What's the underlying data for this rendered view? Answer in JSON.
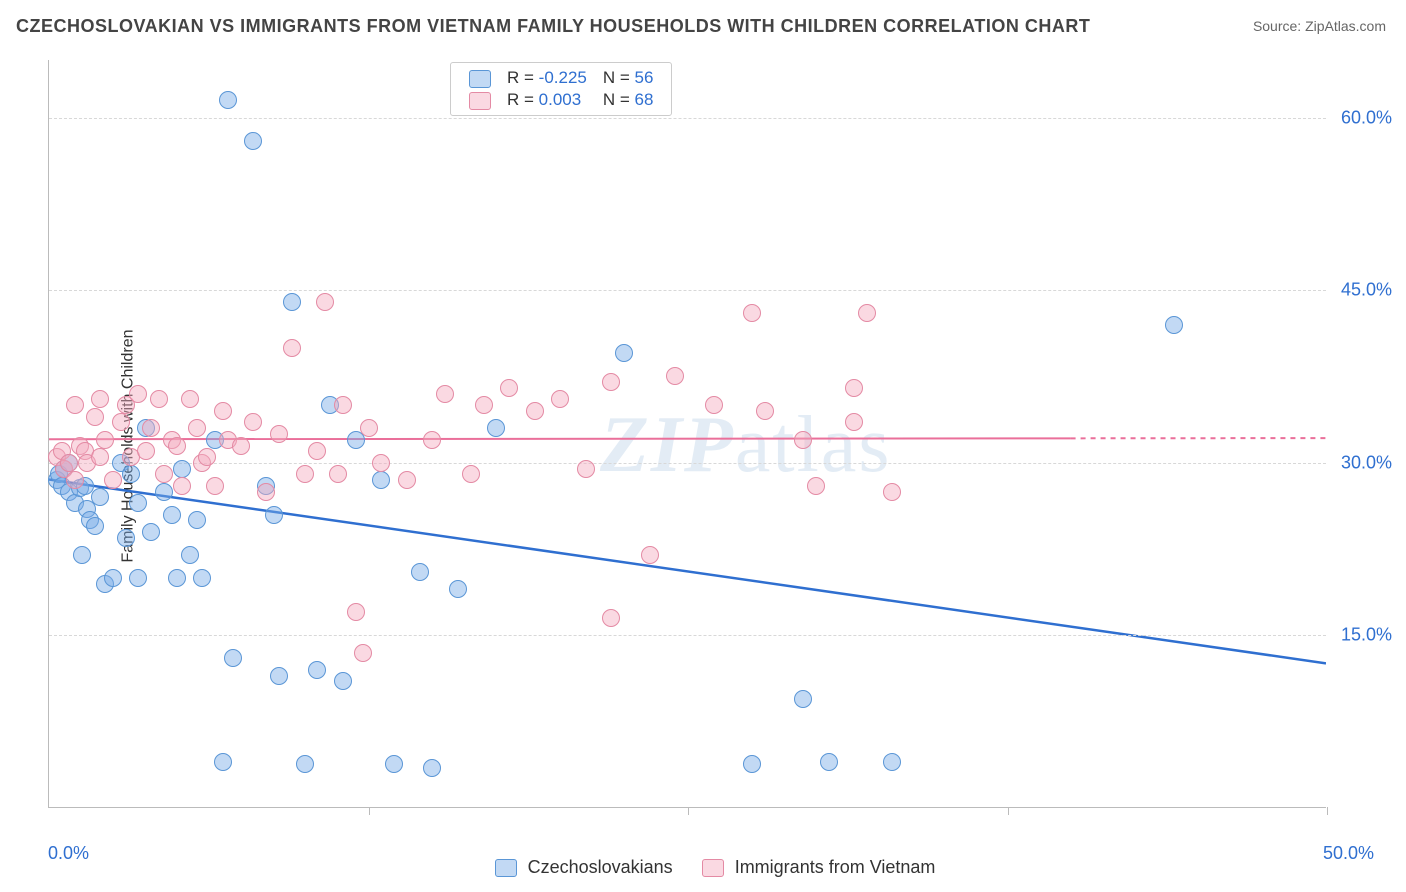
{
  "title": "CZECHOSLOVAKIAN VS IMMIGRANTS FROM VIETNAM FAMILY HOUSEHOLDS WITH CHILDREN CORRELATION CHART",
  "source": "Source: ZipAtlas.com",
  "ylabel": "Family Households with Children",
  "watermark_a": "ZIP",
  "watermark_b": "atlas",
  "chart": {
    "type": "scatter",
    "xlim": [
      0,
      50
    ],
    "ylim": [
      0,
      65
    ],
    "yticks": [
      15,
      30,
      45,
      60
    ],
    "ytick_labels": [
      "15.0%",
      "30.0%",
      "45.0%",
      "60.0%"
    ],
    "xtick_positions": [
      12.5,
      25,
      37.5,
      50
    ],
    "x_min_label": "0.0%",
    "x_max_label": "50.0%",
    "background_color": "#ffffff",
    "grid_color": "#d8d8d8",
    "marker_radius": 9,
    "marker_border": 1.5,
    "series": [
      {
        "name": "Czechoslovakians",
        "fill": "rgba(120,170,230,0.45)",
        "stroke": "#5a96d6",
        "R": "-0.225",
        "N": "56",
        "trend": {
          "y_at_x0": 28.5,
          "y_at_x50": 12.5,
          "color": "#2f6fd0",
          "width": 2.5
        },
        "points": [
          [
            0.3,
            28.5
          ],
          [
            0.4,
            29.0
          ],
          [
            0.5,
            28.0
          ],
          [
            0.6,
            29.5
          ],
          [
            0.8,
            27.5
          ],
          [
            0.8,
            30.0
          ],
          [
            1.0,
            26.5
          ],
          [
            1.2,
            27.8
          ],
          [
            1.3,
            22.0
          ],
          [
            1.4,
            28.0
          ],
          [
            1.5,
            26.0
          ],
          [
            1.6,
            25.0
          ],
          [
            1.8,
            24.5
          ],
          [
            2.0,
            27.0
          ],
          [
            2.2,
            19.5
          ],
          [
            2.5,
            20.0
          ],
          [
            2.8,
            30.0
          ],
          [
            3.0,
            23.5
          ],
          [
            3.2,
            29.0
          ],
          [
            3.5,
            26.5
          ],
          [
            3.5,
            20.0
          ],
          [
            3.8,
            33.0
          ],
          [
            4.0,
            24.0
          ],
          [
            4.5,
            27.5
          ],
          [
            4.8,
            25.5
          ],
          [
            5.0,
            20.0
          ],
          [
            5.2,
            29.5
          ],
          [
            5.5,
            22.0
          ],
          [
            5.8,
            25.0
          ],
          [
            6.0,
            20.0
          ],
          [
            6.5,
            32.0
          ],
          [
            6.8,
            4.0
          ],
          [
            7.0,
            61.5
          ],
          [
            7.2,
            13.0
          ],
          [
            8.0,
            58.0
          ],
          [
            8.5,
            28.0
          ],
          [
            8.8,
            25.5
          ],
          [
            9.0,
            11.5
          ],
          [
            9.5,
            44.0
          ],
          [
            10.0,
            3.8
          ],
          [
            10.5,
            12.0
          ],
          [
            11.0,
            35.0
          ],
          [
            11.5,
            11.0
          ],
          [
            12.0,
            32.0
          ],
          [
            13.0,
            28.5
          ],
          [
            13.5,
            3.8
          ],
          [
            14.5,
            20.5
          ],
          [
            15.0,
            3.5
          ],
          [
            16.0,
            19.0
          ],
          [
            17.5,
            33.0
          ],
          [
            22.5,
            39.5
          ],
          [
            27.5,
            3.8
          ],
          [
            29.5,
            9.5
          ],
          [
            30.5,
            4.0
          ],
          [
            33.0,
            4.0
          ],
          [
            44.0,
            42.0
          ]
        ]
      },
      {
        "name": "Immigrants from Vietnam",
        "fill": "rgba(245,170,190,0.45)",
        "stroke": "#e48aa4",
        "R": "0.003",
        "N": "68",
        "trend": {
          "y_at_x0": 32.0,
          "y_at_x50": 32.1,
          "color": "#ea6f9a",
          "width": 2,
          "dash_after": 40
        },
        "points": [
          [
            0.3,
            30.5
          ],
          [
            0.5,
            31.0
          ],
          [
            0.6,
            29.5
          ],
          [
            0.8,
            30.0
          ],
          [
            1.0,
            35.0
          ],
          [
            1.0,
            28.5
          ],
          [
            1.2,
            31.5
          ],
          [
            1.4,
            31.0
          ],
          [
            1.5,
            30.0
          ],
          [
            1.8,
            34.0
          ],
          [
            2.0,
            35.5
          ],
          [
            2.0,
            30.5
          ],
          [
            2.2,
            32.0
          ],
          [
            2.5,
            28.5
          ],
          [
            2.8,
            33.5
          ],
          [
            3.0,
            35.0
          ],
          [
            3.2,
            30.5
          ],
          [
            3.5,
            36.0
          ],
          [
            3.8,
            31.0
          ],
          [
            4.0,
            33.0
          ],
          [
            4.3,
            35.5
          ],
          [
            4.5,
            29.0
          ],
          [
            4.8,
            32.0
          ],
          [
            5.0,
            31.5
          ],
          [
            5.2,
            28.0
          ],
          [
            5.5,
            35.5
          ],
          [
            5.8,
            33.0
          ],
          [
            6.0,
            30.0
          ],
          [
            6.2,
            30.5
          ],
          [
            6.5,
            28.0
          ],
          [
            6.8,
            34.5
          ],
          [
            7.0,
            32.0
          ],
          [
            7.5,
            31.5
          ],
          [
            8.0,
            33.5
          ],
          [
            8.5,
            27.5
          ],
          [
            9.0,
            32.5
          ],
          [
            9.5,
            40.0
          ],
          [
            10.0,
            29.0
          ],
          [
            10.5,
            31.0
          ],
          [
            10.8,
            44.0
          ],
          [
            11.3,
            29.0
          ],
          [
            11.5,
            35.0
          ],
          [
            12.0,
            17.0
          ],
          [
            12.3,
            13.5
          ],
          [
            12.5,
            33.0
          ],
          [
            13.0,
            30.0
          ],
          [
            14.0,
            28.5
          ],
          [
            15.0,
            32.0
          ],
          [
            15.5,
            36.0
          ],
          [
            16.5,
            29.0
          ],
          [
            17.0,
            35.0
          ],
          [
            18.0,
            36.5
          ],
          [
            19.0,
            34.5
          ],
          [
            20.0,
            35.5
          ],
          [
            21.0,
            29.5
          ],
          [
            22.0,
            37.0
          ],
          [
            22.0,
            16.5
          ],
          [
            23.5,
            22.0
          ],
          [
            24.5,
            37.5
          ],
          [
            26.0,
            35.0
          ],
          [
            27.5,
            43.0
          ],
          [
            28.0,
            34.5
          ],
          [
            29.5,
            32.0
          ],
          [
            30.0,
            28.0
          ],
          [
            31.5,
            33.5
          ],
          [
            31.5,
            36.5
          ],
          [
            32.0,
            43.0
          ],
          [
            33.0,
            27.5
          ]
        ]
      }
    ]
  },
  "legend_bottom": {
    "items": [
      "Czechoslovakians",
      "Immigrants from Vietnam"
    ]
  }
}
